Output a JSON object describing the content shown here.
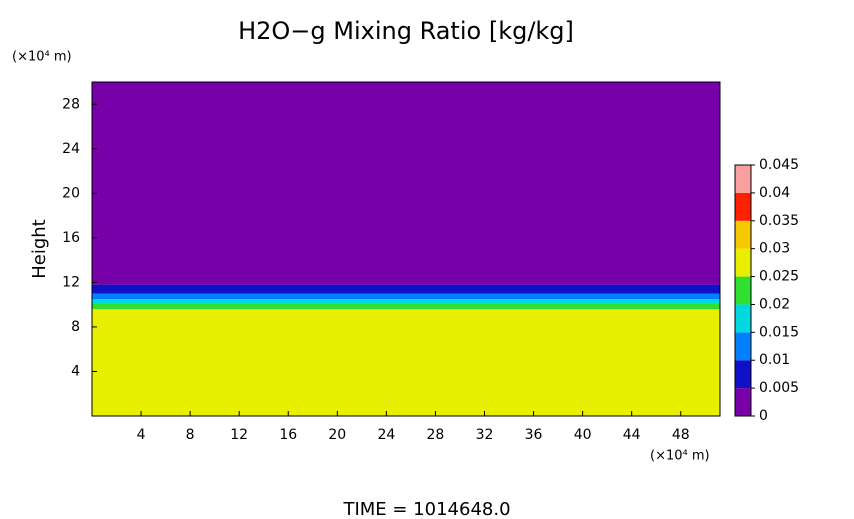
{
  "chart_data": {
    "type": "contour",
    "title": "H2O−g Mixing Ratio [kg/kg]",
    "y_label": "Height",
    "y_unit": "(×10⁴ m)",
    "x_unit": "(×10⁴ m)",
    "time_label": "TIME = 1014648.0",
    "xlim": [
      0,
      51.2
    ],
    "xticks": [
      4,
      8,
      12,
      16,
      20,
      24,
      28,
      32,
      36,
      40,
      44,
      48
    ],
    "ylim": [
      0,
      30
    ],
    "yticks": [
      4,
      8,
      12,
      16,
      20,
      24,
      28
    ],
    "y_bins": [
      0,
      9.6,
      10.1,
      10.5,
      11.0,
      11.8,
      30
    ],
    "values": [
      0.027,
      0.022,
      0.017,
      0.012,
      0.007,
      0.002
    ],
    "colorbar": {
      "levels": [
        0,
        0.005,
        0.01,
        0.015,
        0.02,
        0.025,
        0.03,
        0.035,
        0.04,
        0.045
      ],
      "colors": [
        "#7800a8",
        "#1010c8",
        "#0080ff",
        "#00d8e0",
        "#30e030",
        "#e8f000",
        "#f8c800",
        "#ff2000",
        "#f8a0a0"
      ]
    }
  }
}
